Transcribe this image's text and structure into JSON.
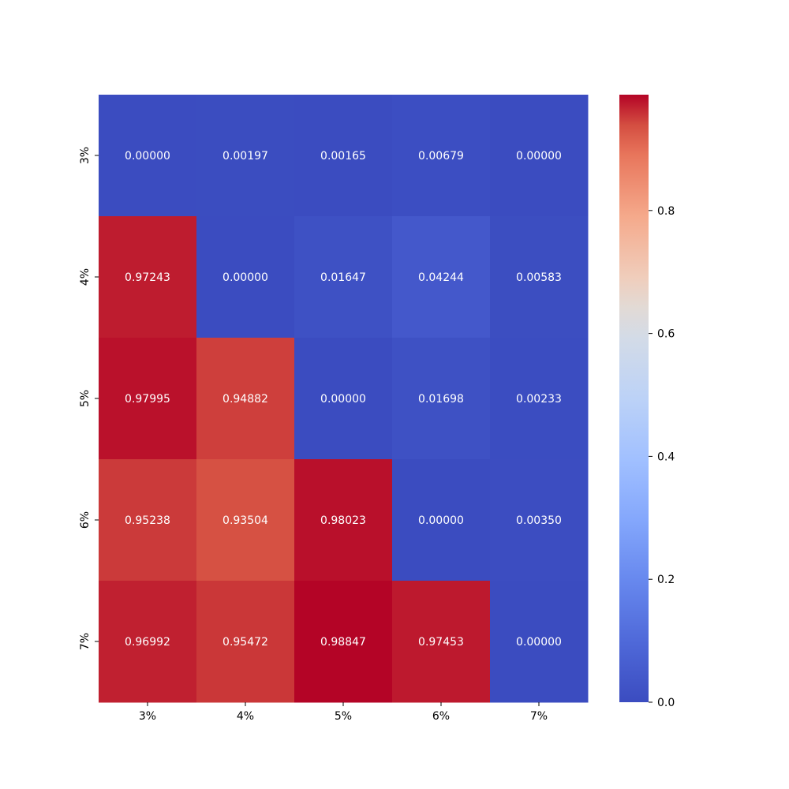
{
  "chart_data": {
    "type": "heatmap",
    "title": "",
    "xlabel": "",
    "ylabel": "",
    "colormap": "coolwarm",
    "x_categories": [
      "3%",
      "4%",
      "5%",
      "6%",
      "7%"
    ],
    "y_categories": [
      "3%",
      "4%",
      "5%",
      "6%",
      "7%"
    ],
    "values": [
      [
        0.0,
        0.00197,
        0.00165,
        0.00679,
        0.0
      ],
      [
        0.97243,
        0.0,
        0.01647,
        0.04244,
        0.00583
      ],
      [
        0.97995,
        0.94882,
        0.0,
        0.01698,
        0.00233
      ],
      [
        0.95238,
        0.93504,
        0.98023,
        0.0,
        0.0035
      ],
      [
        0.96992,
        0.95472,
        0.98847,
        0.97453,
        0.0
      ]
    ],
    "value_labels": [
      [
        "0.00000",
        "0.00197",
        "0.00165",
        "0.00679",
        "0.00000"
      ],
      [
        "0.97243",
        "0.00000",
        "0.01647",
        "0.04244",
        "0.00583"
      ],
      [
        "0.97995",
        "0.94882",
        "0.00000",
        "0.01698",
        "0.00233"
      ],
      [
        "0.95238",
        "0.93504",
        "0.98023",
        "0.00000",
        "0.00350"
      ],
      [
        "0.96992",
        "0.95472",
        "0.98847",
        "0.97453",
        "0.00000"
      ]
    ],
    "colorbar": {
      "range": [
        0.0,
        0.98847
      ],
      "ticks": [
        0.0,
        0.2,
        0.4,
        0.6,
        0.8
      ],
      "tick_labels": [
        "0.0",
        "0.2",
        "0.4",
        "0.6",
        "0.8"
      ]
    },
    "grid": false,
    "legend": "none"
  }
}
